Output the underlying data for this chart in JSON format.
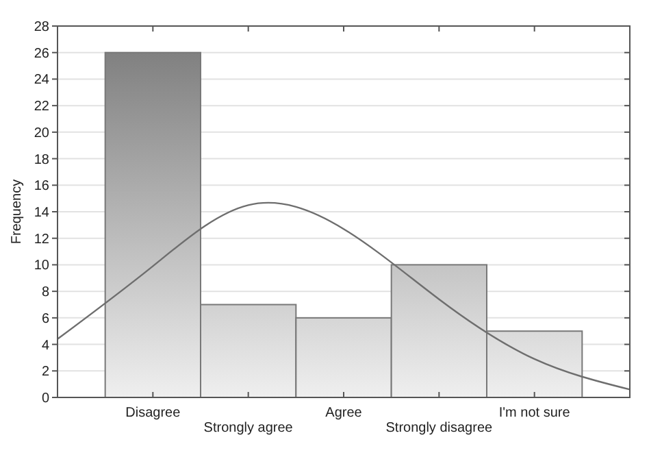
{
  "chart_data": {
    "type": "bar",
    "ylabel": "Frequency",
    "categories": [
      null,
      "Disagree",
      "Strongly agree",
      "Agree",
      "Strongly disagree",
      "I'm not sure",
      null
    ],
    "values": [
      null,
      26,
      7,
      6,
      10,
      5,
      null
    ],
    "color": "#787878",
    "series": [
      {
        "type": "line",
        "color": "#6e6e6e",
        "values": [
          4.4,
          9.9,
          14.5,
          12.7,
          7.4,
          2.9,
          0.6
        ]
      }
    ],
    "ylim": [
      0,
      28
    ],
    "yticks": [
      0,
      2,
      4,
      6,
      8,
      10,
      12,
      14,
      16,
      18,
      20,
      22,
      24,
      26,
      28
    ],
    "grid": "y",
    "marker": "none",
    "line_style": "solid"
  }
}
